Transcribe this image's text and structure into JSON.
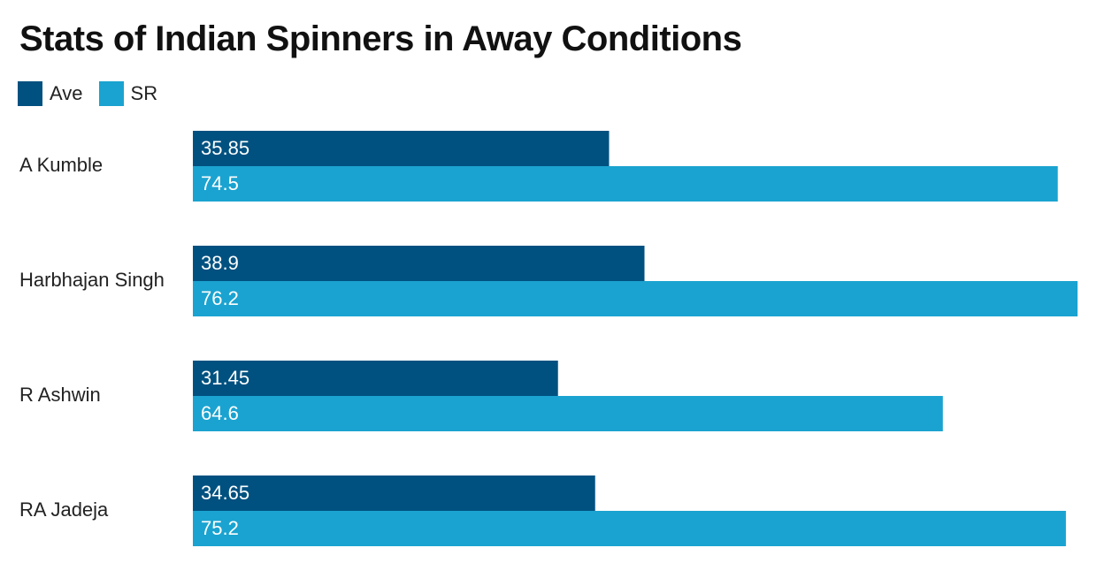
{
  "chart_data": {
    "type": "bar",
    "orientation": "horizontal",
    "title": "Stats of Indian Spinners in Away Conditions",
    "categories": [
      "A Kumble",
      "Harbhajan Singh",
      "R Ashwin",
      "RA Jadeja"
    ],
    "series": [
      {
        "name": "Ave",
        "color": "#005180",
        "values": [
          35.85,
          38.9,
          31.45,
          34.65
        ]
      },
      {
        "name": "SR",
        "color": "#1aa3d0",
        "values": [
          74.5,
          76.2,
          64.6,
          75.2
        ]
      }
    ],
    "xlim": [
      0,
      76.2
    ],
    "grid": false,
    "legend": "top-left"
  }
}
